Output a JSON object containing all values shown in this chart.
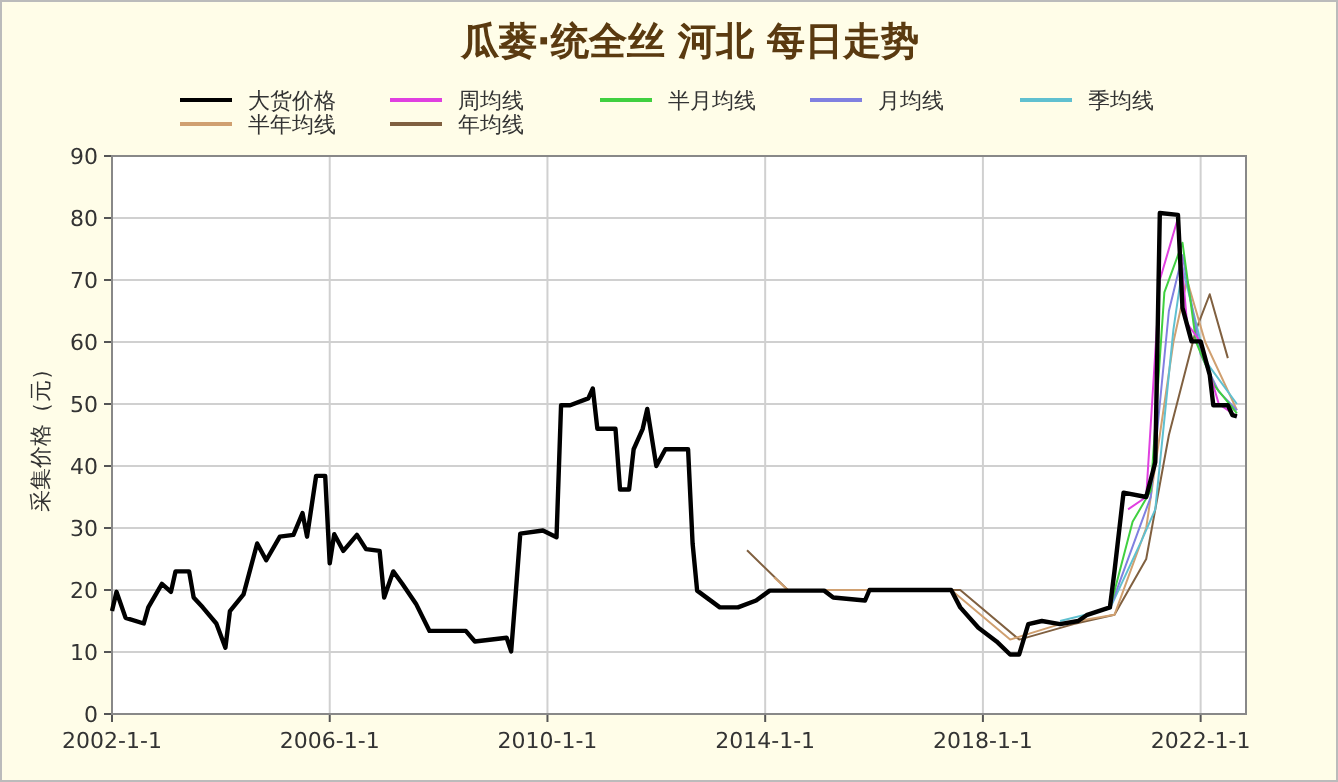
{
  "chart_data": {
    "type": "line",
    "title": "瓜蒌·统全丝 河北 每日走势",
    "ylabel": "采集价格（元）",
    "legend": "top",
    "grid": true,
    "line_style": "solid",
    "marker": "none",
    "xlim": [
      "2002-01-01",
      "2022-11-01"
    ],
    "xticks": [
      {
        "value": "2002-01-01",
        "label": "2002-1-1"
      },
      {
        "value": "2006-01-01",
        "label": "2006-1-1"
      },
      {
        "value": "2010-01-01",
        "label": "2010-1-1"
      },
      {
        "value": "2014-01-01",
        "label": "2014-1-1"
      },
      {
        "value": "2018-01-01",
        "label": "2018-1-1"
      },
      {
        "value": "2022-01-01",
        "label": "2022-1-1"
      }
    ],
    "ylim": [
      0,
      90
    ],
    "yticks": [
      0,
      10,
      20,
      30,
      40,
      50,
      60,
      70,
      80,
      90
    ],
    "series": [
      {
        "name": "大货价格",
        "color": "#000000",
        "x": [
          "2002-01",
          "2002-02",
          "2002-04",
          "2002-08",
          "2002-09",
          "2002-12",
          "2003-02",
          "2003-03",
          "2003-06",
          "2003-07",
          "2003-09",
          "2003-12",
          "2004-02",
          "2004-03",
          "2004-06",
          "2004-09",
          "2004-11",
          "2005-02",
          "2005-05",
          "2005-07",
          "2005-08",
          "2005-10",
          "2005-12",
          "2006-01",
          "2006-02",
          "2006-04",
          "2006-07",
          "2006-09",
          "2006-12",
          "2007-01",
          "2007-03",
          "2007-05",
          "2007-08",
          "2007-11",
          "2008-07",
          "2008-09",
          "2009-04",
          "2009-05",
          "2009-06",
          "2009-07",
          "2009-12",
          "2010-03",
          "2010-04",
          "2010-06",
          "2010-10",
          "2010-11",
          "2010-12",
          "2011-04",
          "2011-05",
          "2011-07",
          "2011-08",
          "2011-10",
          "2011-11",
          "2012-01",
          "2012-03",
          "2012-08",
          "2012-09",
          "2012-10",
          "2013-03",
          "2013-07",
          "2013-11",
          "2014-02",
          "2015-02",
          "2015-04",
          "2015-11",
          "2015-12",
          "2017-06",
          "2017-08",
          "2017-12",
          "2018-04",
          "2018-07",
          "2018-09",
          "2018-11",
          "2019-02",
          "2019-06",
          "2019-10",
          "2019-12",
          "2020-05",
          "2020-06",
          "2020-08",
          "2021-01",
          "2021-03",
          "2021-04",
          "2021-08",
          "2021-09",
          "2021-11",
          "2022-01",
          "2022-03",
          "2022-03-25",
          "2022-07",
          "2022-08",
          "2022-09"
        ],
        "values": [
          16.6,
          19.7,
          15.5,
          14.6,
          17.2,
          21,
          19.7,
          23,
          23,
          18.8,
          17.2,
          14.6,
          10.7,
          16.6,
          19.3,
          27.5,
          24.8,
          28.6,
          28.9,
          32.4,
          28.6,
          38.4,
          38.4,
          24.3,
          29,
          26.3,
          28.9,
          26.6,
          26.3,
          18.8,
          23,
          21,
          17.8,
          13.4,
          13.4,
          11.7,
          12.3,
          10.1,
          19.4,
          29.1,
          29.6,
          28.5,
          49.8,
          49.8,
          50.9,
          52.5,
          46,
          46,
          36.2,
          36.2,
          42.7,
          46,
          49.2,
          40,
          42.7,
          42.7,
          27.5,
          19.9,
          17.2,
          17.2,
          18.3,
          19.9,
          19.9,
          18.8,
          18.3,
          20,
          20,
          17.2,
          13.9,
          11.7,
          9.6,
          9.6,
          14.5,
          15,
          14.5,
          15,
          16,
          17.2,
          23,
          35.7,
          35,
          40.6,
          80.8,
          80.5,
          65.5,
          60.1,
          60.1,
          54.7,
          49.8,
          49.8,
          48.2,
          48
        ]
      },
      {
        "name": "周均线",
        "color": "#e040e0",
        "x": [
          "2020-09",
          "2021-01",
          "2021-04",
          "2021-08",
          "2021-10",
          "2022-01",
          "2022-05",
          "2022-09"
        ],
        "values": [
          33,
          35,
          70,
          80,
          63,
          60,
          50,
          48
        ]
      },
      {
        "name": "半月均线",
        "color": "#40d040",
        "x": [
          "2020-05",
          "2020-10",
          "2021-02",
          "2021-05",
          "2021-09",
          "2021-12",
          "2022-04",
          "2022-09"
        ],
        "values": [
          17,
          31,
          36,
          68,
          76,
          60,
          53,
          48.5
        ]
      },
      {
        "name": "月均线",
        "color": "#8080e0",
        "x": [
          "2020-05",
          "2020-11",
          "2021-02",
          "2021-06",
          "2021-09",
          "2022-01",
          "2022-05",
          "2022-09"
        ],
        "values": [
          17,
          29,
          35,
          65,
          74,
          58,
          52,
          49
        ]
      },
      {
        "name": "季均线",
        "color": "#60c0d0",
        "x": [
          "2019-06",
          "2020-05",
          "2020-12",
          "2021-03",
          "2021-07",
          "2021-09",
          "2022-02",
          "2022-09"
        ],
        "values": [
          15,
          17,
          28,
          33,
          62,
          72,
          57,
          50
        ]
      },
      {
        "name": "半年均线",
        "color": "#d0a070",
        "x": [
          "2014-03",
          "2014-06",
          "2017-06",
          "2018-07",
          "2019-06",
          "2020-06",
          "2021-01",
          "2021-07",
          "2021-10",
          "2022-02",
          "2022-09"
        ],
        "values": [
          22,
          20,
          20,
          12,
          14.5,
          16,
          30,
          60,
          70,
          60,
          49
        ]
      },
      {
        "name": "年均线",
        "color": "#806040",
        "x": [
          "2013-09",
          "2014-06",
          "2017-08",
          "2018-09",
          "2019-09",
          "2020-06",
          "2021-01",
          "2021-06",
          "2021-12",
          "2022-03",
          "2022-07"
        ],
        "values": [
          26.4,
          20,
          20,
          12,
          14.5,
          16,
          25,
          45,
          62,
          67.7,
          57.4
        ]
      }
    ]
  }
}
